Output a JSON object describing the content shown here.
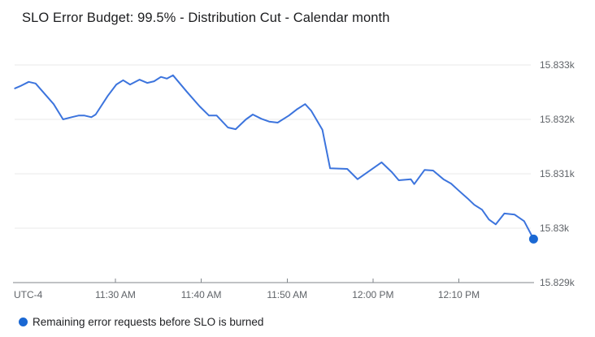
{
  "title": "SLO Error Budget: 99.5% - Distribution Cut - Calendar month",
  "colors": {
    "line": "#3c74dd",
    "marker": "#1a68d3",
    "grid": "#e9e9e9",
    "axis_line": "#80868b",
    "axis_text": "#5f6368",
    "title_text": "#1c1d1f",
    "legend_text": "#202124",
    "background": "#ffffff"
  },
  "x_axis": {
    "timezone_label": "UTC-4"
  },
  "legend": {
    "label": "Remaining error requests before SLO is burned"
  },
  "chart_data": {
    "type": "line",
    "title": "SLO Error Budget: 99.5% - Distribution Cut - Calendar month",
    "series_name": "Remaining error requests before SLO is burned",
    "x_unit": "minutes after 11:00 AM (UTC-4)",
    "y_unit": "remaining error requests",
    "grid": true,
    "legend_position": "bottom-left",
    "y_axis_side": "right",
    "xlim_minutes": [
      18.3,
      78.7
    ],
    "ylim": [
      15829,
      15833
    ],
    "y_ticks": [
      {
        "label": "15.833k",
        "value": 15833
      },
      {
        "label": "15.832k",
        "value": 15832
      },
      {
        "label": "15.831k",
        "value": 15831
      },
      {
        "label": "15.83k",
        "value": 15830
      },
      {
        "label": "15.829k",
        "value": 15829
      }
    ],
    "x_ticks": [
      {
        "label": "11:30 AM",
        "minutes": 30
      },
      {
        "label": "11:40 AM",
        "minutes": 40
      },
      {
        "label": "11:50 AM",
        "minutes": 50
      },
      {
        "label": "12:00 PM",
        "minutes": 60
      },
      {
        "label": "12:10 PM",
        "minutes": 70
      }
    ],
    "x_minutes": [
      18.3,
      18.9,
      19.9,
      20.7,
      22.8,
      23.9,
      24.9,
      25.7,
      26.4,
      27.2,
      27.7,
      29.1,
      30.1,
      30.9,
      31.7,
      32.8,
      33.7,
      34.5,
      35.3,
      36.0,
      36.7,
      38.3,
      39.8,
      40.9,
      41.8,
      43.1,
      44.0,
      45.2,
      46.0,
      47.0,
      47.9,
      48.9,
      50.2,
      51.1,
      52.1,
      52.8,
      54.1,
      55.0,
      57.0,
      58.2,
      61.0,
      62.2,
      63.0,
      64.4,
      64.8,
      66.0,
      67.0,
      68.2,
      69.1,
      70.0,
      71.0,
      71.8,
      72.7,
      73.5,
      74.3,
      75.3,
      76.5,
      77.6,
      78.7
    ],
    "values": [
      15832.57,
      15832.61,
      15832.69,
      15832.66,
      15832.28,
      15832.0,
      15832.04,
      15832.07,
      15832.07,
      15832.04,
      15832.09,
      15832.43,
      15832.64,
      15832.72,
      15832.64,
      15832.73,
      15832.67,
      15832.7,
      15832.78,
      15832.75,
      15832.81,
      15832.51,
      15832.24,
      15832.07,
      15832.07,
      15831.85,
      15831.82,
      15832.0,
      15832.09,
      15832.01,
      15831.96,
      15831.94,
      15832.07,
      15832.18,
      15832.28,
      15832.16,
      15831.81,
      15831.1,
      15831.09,
      15830.9,
      15831.21,
      15831.03,
      15830.88,
      15830.9,
      15830.81,
      15831.07,
      15831.06,
      15830.9,
      15830.82,
      15830.69,
      15830.55,
      15830.43,
      15830.34,
      15830.16,
      15830.07,
      15830.27,
      15830.25,
      15830.13,
      15829.8
    ],
    "last_point_marker": true
  }
}
